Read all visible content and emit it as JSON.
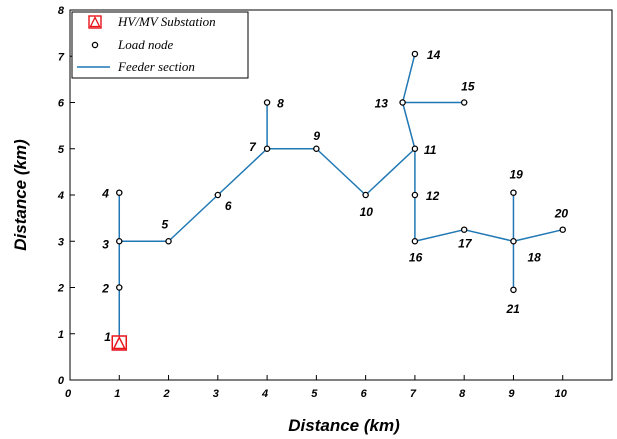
{
  "axes": {
    "xlabel": "Distance (km)",
    "ylabel": "Distance (km)",
    "xlim": [
      0,
      11
    ],
    "ylim": [
      0,
      8
    ],
    "xticks": [
      "0",
      "1",
      "2",
      "3",
      "4",
      "5",
      "6",
      "7",
      "8",
      "9",
      "10"
    ],
    "yticks": [
      "0",
      "1",
      "2",
      "3",
      "4",
      "5",
      "6",
      "7",
      "8"
    ]
  },
  "legend": {
    "position": "top-left",
    "items": [
      {
        "kind": "substation",
        "label": "HV/MV Substation"
      },
      {
        "kind": "load",
        "label": "Load node"
      },
      {
        "kind": "feeder",
        "label": "Feeder section"
      }
    ]
  },
  "colors": {
    "feeder": "#1f77b4",
    "substation": "#e8141a",
    "node": "#000000"
  },
  "substation": {
    "x": 1,
    "y": 0.8
  },
  "nodes": [
    {
      "id": "1",
      "x": 1,
      "y": 0.8
    },
    {
      "id": "2",
      "x": 1,
      "y": 2
    },
    {
      "id": "3",
      "x": 1,
      "y": 3
    },
    {
      "id": "4",
      "x": 1,
      "y": 4.05
    },
    {
      "id": "5",
      "x": 2,
      "y": 3
    },
    {
      "id": "6",
      "x": 3,
      "y": 4
    },
    {
      "id": "7",
      "x": 4,
      "y": 5
    },
    {
      "id": "8",
      "x": 4,
      "y": 6
    },
    {
      "id": "9",
      "x": 5,
      "y": 5
    },
    {
      "id": "10",
      "x": 6,
      "y": 4
    },
    {
      "id": "11",
      "x": 7,
      "y": 5
    },
    {
      "id": "12",
      "x": 7,
      "y": 4
    },
    {
      "id": "13",
      "x": 6.75,
      "y": 6
    },
    {
      "id": "14",
      "x": 7,
      "y": 7.05
    },
    {
      "id": "15",
      "x": 8,
      "y": 6
    },
    {
      "id": "16",
      "x": 7,
      "y": 3
    },
    {
      "id": "17",
      "x": 8,
      "y": 3.25
    },
    {
      "id": "18",
      "x": 9,
      "y": 3
    },
    {
      "id": "19",
      "x": 9,
      "y": 4.05
    },
    {
      "id": "20",
      "x": 10,
      "y": 3.25
    },
    {
      "id": "21",
      "x": 9,
      "y": 1.95
    }
  ],
  "edges": [
    [
      "1",
      "2"
    ],
    [
      "2",
      "3"
    ],
    [
      "3",
      "4"
    ],
    [
      "3",
      "5"
    ],
    [
      "5",
      "6"
    ],
    [
      "6",
      "7"
    ],
    [
      "7",
      "8"
    ],
    [
      "7",
      "9"
    ],
    [
      "9",
      "10"
    ],
    [
      "10",
      "11"
    ],
    [
      "11",
      "13"
    ],
    [
      "13",
      "14"
    ],
    [
      "13",
      "15"
    ],
    [
      "11",
      "12"
    ],
    [
      "12",
      "16"
    ],
    [
      "16",
      "17"
    ],
    [
      "17",
      "18"
    ],
    [
      "18",
      "19"
    ],
    [
      "18",
      "20"
    ],
    [
      "18",
      "21"
    ]
  ]
}
